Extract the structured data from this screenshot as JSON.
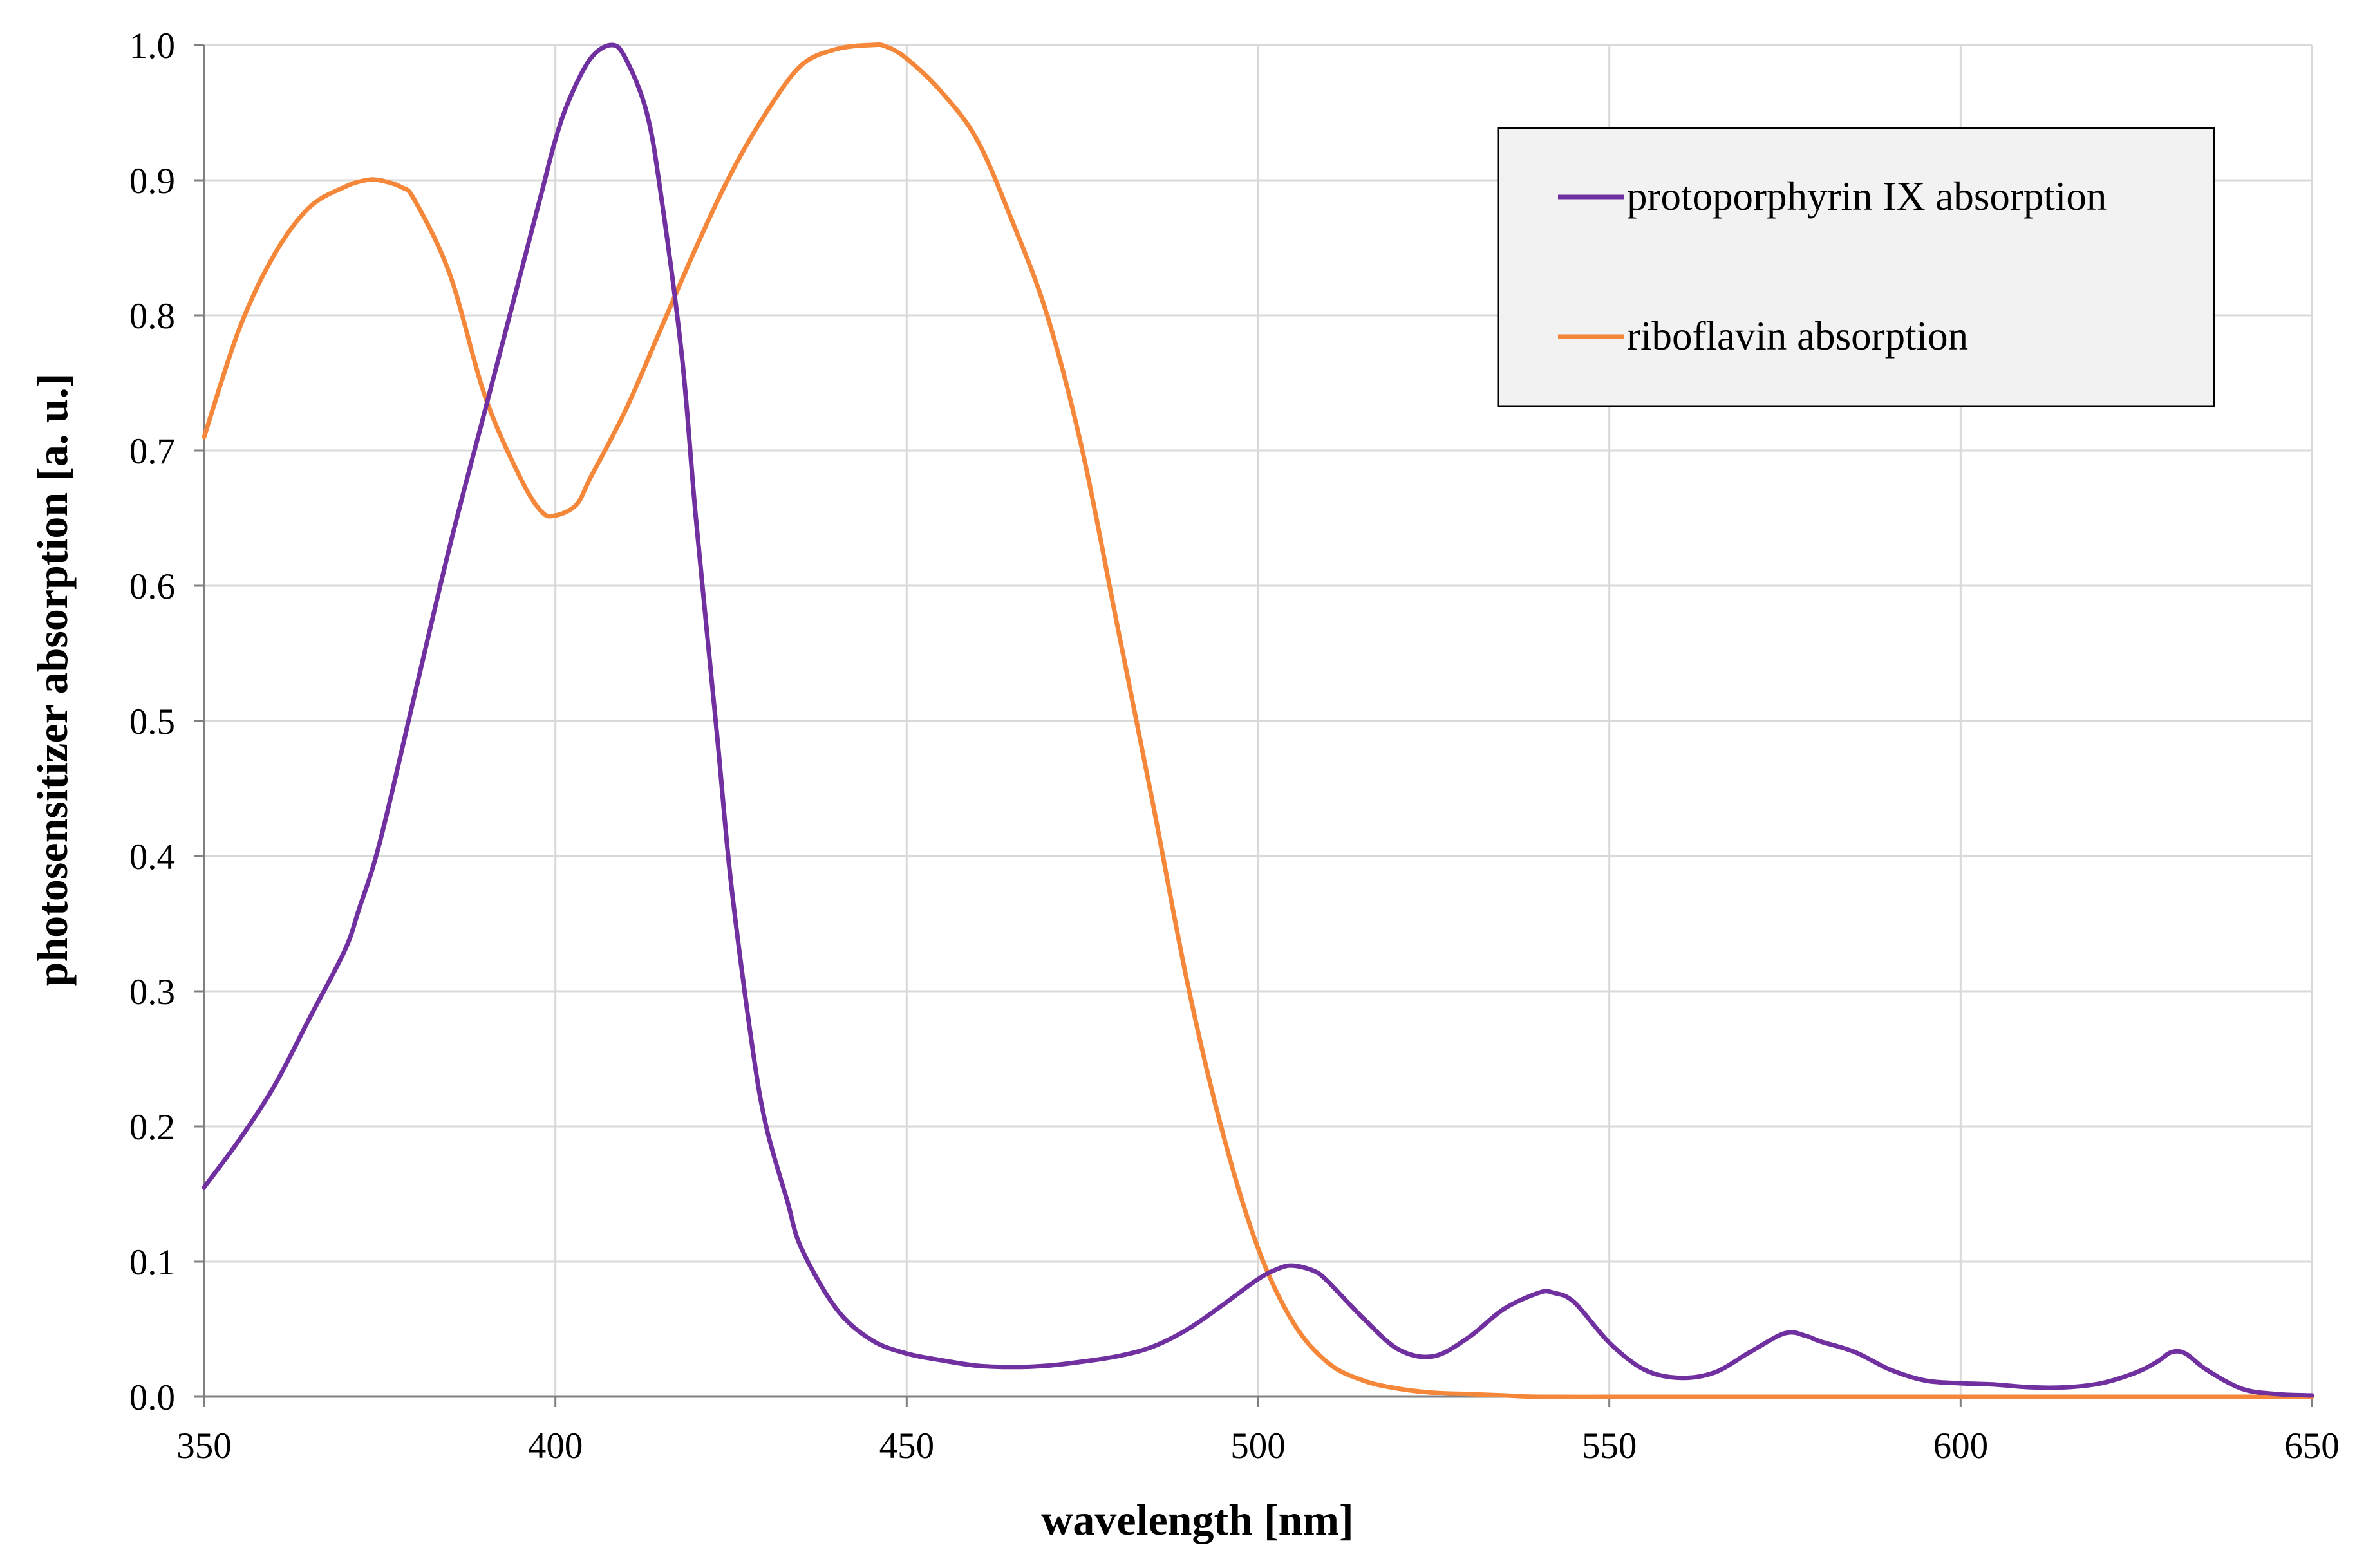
{
  "chart_data": {
    "type": "line",
    "title": "",
    "xlabel": "wavelength [nm]",
    "ylabel": "photosensitizer absorption [a. u.]",
    "xlim": [
      350,
      650
    ],
    "ylim": [
      0,
      1.0
    ],
    "xticks": [
      350,
      400,
      450,
      500,
      550,
      600,
      650
    ],
    "yticks": [
      0.0,
      0.1,
      0.2,
      0.3,
      0.4,
      0.5,
      0.6,
      0.7,
      0.8,
      0.9,
      1.0
    ],
    "xtick_labels": [
      "350",
      "400",
      "450",
      "500",
      "550",
      "600",
      "650"
    ],
    "ytick_labels": [
      "0.0",
      "0.1",
      "0.2",
      "0.3",
      "0.4",
      "0.5",
      "0.6",
      "0.7",
      "0.8",
      "0.9",
      "1.0"
    ],
    "grid": true,
    "legend_position": "top-right",
    "series": [
      {
        "name": "protoporphyrin IX absorption",
        "color": "#7030a0",
        "x": [
          350,
          355,
          360,
          365,
          370,
          372,
          375,
          380,
          385,
          390,
          395,
          398,
          400,
          402,
          405,
          408,
          410,
          413,
          415,
          418,
          420,
          423,
          425,
          428,
          430,
          433,
          435,
          440,
          445,
          450,
          455,
          460,
          465,
          470,
          475,
          480,
          485,
          490,
          495,
          500,
          503,
          505,
          508,
          510,
          515,
          520,
          525,
          530,
          535,
          540,
          542,
          545,
          550,
          555,
          560,
          565,
          570,
          575,
          578,
          580,
          585,
          590,
          595,
          600,
          605,
          610,
          615,
          620,
          625,
          628,
          630,
          632,
          635,
          640,
          645,
          650
        ],
        "y": [
          0.155,
          0.19,
          0.23,
          0.28,
          0.33,
          0.36,
          0.41,
          0.52,
          0.63,
          0.73,
          0.83,
          0.89,
          0.93,
          0.96,
          0.99,
          1.0,
          0.99,
          0.95,
          0.89,
          0.77,
          0.65,
          0.49,
          0.38,
          0.26,
          0.2,
          0.145,
          0.11,
          0.065,
          0.042,
          0.032,
          0.027,
          0.023,
          0.022,
          0.023,
          0.026,
          0.03,
          0.037,
          0.05,
          0.068,
          0.087,
          0.095,
          0.097,
          0.093,
          0.085,
          0.058,
          0.035,
          0.03,
          0.044,
          0.065,
          0.077,
          0.077,
          0.07,
          0.04,
          0.02,
          0.014,
          0.018,
          0.033,
          0.047,
          0.045,
          0.041,
          0.033,
          0.02,
          0.012,
          0.01,
          0.009,
          0.007,
          0.007,
          0.01,
          0.018,
          0.026,
          0.033,
          0.032,
          0.02,
          0.006,
          0.002,
          0.001
        ]
      },
      {
        "name": "riboflavin absorption",
        "color": "#f5873a",
        "x": [
          350,
          355,
          360,
          365,
          370,
          373,
          375,
          378,
          380,
          385,
          390,
          395,
          398,
          400,
          403,
          405,
          410,
          415,
          420,
          425,
          430,
          435,
          440,
          445,
          447,
          450,
          455,
          460,
          465,
          470,
          475,
          480,
          485,
          490,
          495,
          500,
          505,
          510,
          515,
          520,
          525,
          530,
          535,
          540,
          550,
          560,
          570,
          600,
          650
        ],
        "y": [
          0.71,
          0.79,
          0.845,
          0.88,
          0.895,
          0.9,
          0.9,
          0.895,
          0.885,
          0.83,
          0.74,
          0.68,
          0.655,
          0.652,
          0.66,
          0.68,
          0.73,
          0.79,
          0.85,
          0.905,
          0.95,
          0.985,
          0.997,
          1.0,
          0.999,
          0.99,
          0.965,
          0.93,
          0.87,
          0.8,
          0.7,
          0.57,
          0.44,
          0.305,
          0.195,
          0.11,
          0.055,
          0.025,
          0.012,
          0.006,
          0.003,
          0.002,
          0.001,
          0.0,
          0.0,
          0.0,
          0.0,
          0.0,
          0.0
        ]
      }
    ]
  }
}
